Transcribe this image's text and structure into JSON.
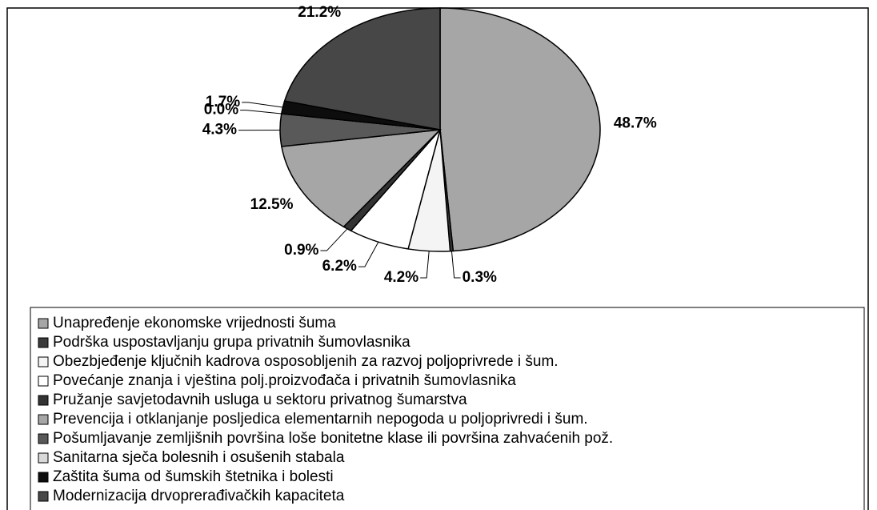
{
  "chart_data": {
    "type": "pie",
    "categories": [
      "Unapređenje ekonomske vrijednosti šuma",
      "Podrška uspostavljanju grupa privatnih šumovlasnika",
      "Obezbjeđenje ključnih kadrova osposobljenih za razvoj poljoprivrede i šum.",
      "Povećanje znanja i vještina polj.proizvođača i privatnih šumovlasnika",
      "Pružanje savjetodavnih usluga u sektoru privatnog šumarstva",
      "Prevencija i otklanjanje posljedica elementarnih nepogoda u poljoprivredi i šum.",
      "Pošumljavanje zemljišnih površina loše bonitetne klase ili površina zahvaćenih pož.",
      "Sanitarna sječa bolesnih i osušenih stabala",
      "Zaštita šuma od šumskih štetnika i bolesti",
      "Modernizacija drvoprerađivačkih kapaciteta"
    ],
    "values": [
      48.7,
      0.3,
      4.2,
      6.2,
      0.9,
      12.5,
      4.3,
      0.0,
      1.7,
      21.2
    ],
    "value_labels": [
      "48.7%",
      "0.3%",
      "4.2%",
      "6.2%",
      "0.9%",
      "12.5%",
      "4.3%",
      "0.0%",
      "1.7%",
      "21.2%"
    ],
    "colors": [
      "#a6a6a6",
      "#3a3a3a",
      "#f4f4f4",
      "#ffffff",
      "#333333",
      "#a6a6a6",
      "#595959",
      "#d9d9d9",
      "#0d0d0d",
      "#474747"
    ],
    "legend": "bottom"
  }
}
